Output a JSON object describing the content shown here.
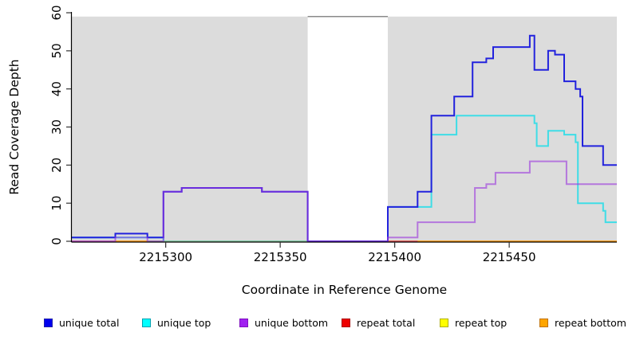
{
  "figure": {
    "kind": "read coverage step plot",
    "title": ""
  },
  "chart_data": {
    "type": "line",
    "subtype": "step-after",
    "title": "",
    "xlabel": "Coordinate in Reference Genome",
    "ylabel": "Read Coverage Depth",
    "xlim": [
      2215259,
      2215497
    ],
    "ylim": [
      0,
      60
    ],
    "grid": false,
    "legend_position": "bottom",
    "x_ticks": [
      2215300,
      2215350,
      2215400,
      2215450
    ],
    "x_tick_labels": [
      "2215300",
      "2215350",
      "2215400",
      "2215450"
    ],
    "y_ticks": [
      0,
      10,
      20,
      30,
      40,
      50,
      60
    ],
    "y_tick_labels": [
      "0",
      "10",
      "20",
      "30",
      "40",
      "50",
      "60"
    ],
    "background_color": "#DCDCDC",
    "background_top": 59,
    "background_regions": [
      {
        "x1": 2215259,
        "x2": 2215362
      },
      {
        "x1": 2215397,
        "x2": 2215497
      }
    ],
    "gap_top_line": {
      "x1": 2215362,
      "x2": 2215397,
      "y": 59,
      "color": "#8A8A8A"
    },
    "series": [
      {
        "name": "unique total",
        "color": "#2222DD",
        "opacity": 1,
        "points": [
          [
            2215259,
            1
          ],
          [
            2215278,
            2
          ],
          [
            2215292,
            1
          ],
          [
            2215299,
            13
          ],
          [
            2215307,
            14
          ],
          [
            2215342,
            13
          ],
          [
            2215362,
            0
          ],
          [
            2215397,
            9
          ],
          [
            2215410,
            13
          ],
          [
            2215416,
            33
          ],
          [
            2215426,
            38
          ],
          [
            2215434,
            47
          ],
          [
            2215440,
            48
          ],
          [
            2215443,
            51
          ],
          [
            2215459,
            54
          ],
          [
            2215461,
            45
          ],
          [
            2215467,
            50
          ],
          [
            2215470,
            49
          ],
          [
            2215474,
            42
          ],
          [
            2215479,
            40
          ],
          [
            2215481,
            38
          ],
          [
            2215482,
            25
          ],
          [
            2215491,
            20
          ]
        ]
      },
      {
        "name": "unique top",
        "color": "#3FDDE6",
        "opacity": 1,
        "points": [
          [
            2215259,
            1
          ],
          [
            2215299,
            0
          ],
          [
            2215397,
            9
          ],
          [
            2215416,
            28
          ],
          [
            2215427,
            33
          ],
          [
            2215461,
            31
          ],
          [
            2215462,
            25
          ],
          [
            2215467,
            29
          ],
          [
            2215474,
            28
          ],
          [
            2215479,
            26
          ],
          [
            2215480,
            10
          ],
          [
            2215491,
            8
          ],
          [
            2215492,
            5
          ]
        ]
      },
      {
        "name": "unique bottom",
        "color": "#9933DD",
        "opacity": 0.6,
        "points": [
          [
            2215259,
            0
          ],
          [
            2215278,
            1
          ],
          [
            2215292,
            0
          ],
          [
            2215299,
            13
          ],
          [
            2215307,
            14
          ],
          [
            2215342,
            13
          ],
          [
            2215362,
            0
          ],
          [
            2215397,
            1
          ],
          [
            2215410,
            5
          ],
          [
            2215435,
            14
          ],
          [
            2215440,
            15
          ],
          [
            2215444,
            18
          ],
          [
            2215459,
            21
          ],
          [
            2215475,
            15
          ]
        ]
      },
      {
        "name": "repeat total",
        "color": "#DD2222",
        "opacity": 1,
        "points": [
          [
            2215259,
            0
          ]
        ]
      },
      {
        "name": "repeat top",
        "color": "#EEEE22",
        "opacity": 1,
        "points": [
          [
            2215259,
            0
          ]
        ]
      },
      {
        "name": "repeat bottom",
        "color": "#FF9912",
        "opacity": 1,
        "points": [
          [
            2215259,
            0
          ]
        ]
      }
    ],
    "baseline_overlays": [
      {
        "x1": 2215259,
        "x2": 2215278,
        "color": "#ED7FA8"
      },
      {
        "x1": 2215278,
        "x2": 2215292,
        "color": "#FF9912"
      },
      {
        "x1": 2215292,
        "x2": 2215362,
        "color": "#96C796"
      },
      {
        "x1": 2215397,
        "x2": 2215410,
        "color": "#E04B63"
      }
    ]
  },
  "legend": {
    "items": [
      {
        "label": "unique total",
        "color": "#0000EE",
        "border": "#2222AA"
      },
      {
        "label": "unique top",
        "color": "#00FFFF",
        "border": "#00A0B0"
      },
      {
        "label": "unique bottom",
        "color": "#A020F0",
        "border": "#8010C0"
      },
      {
        "label": "repeat total",
        "color": "#EE0000",
        "border": "#AA0000"
      },
      {
        "label": "repeat top",
        "color": "#FFFF00",
        "border": "#B0B000"
      },
      {
        "label": "repeat bottom",
        "color": "#FFA500",
        "border": "#C07000"
      }
    ]
  }
}
